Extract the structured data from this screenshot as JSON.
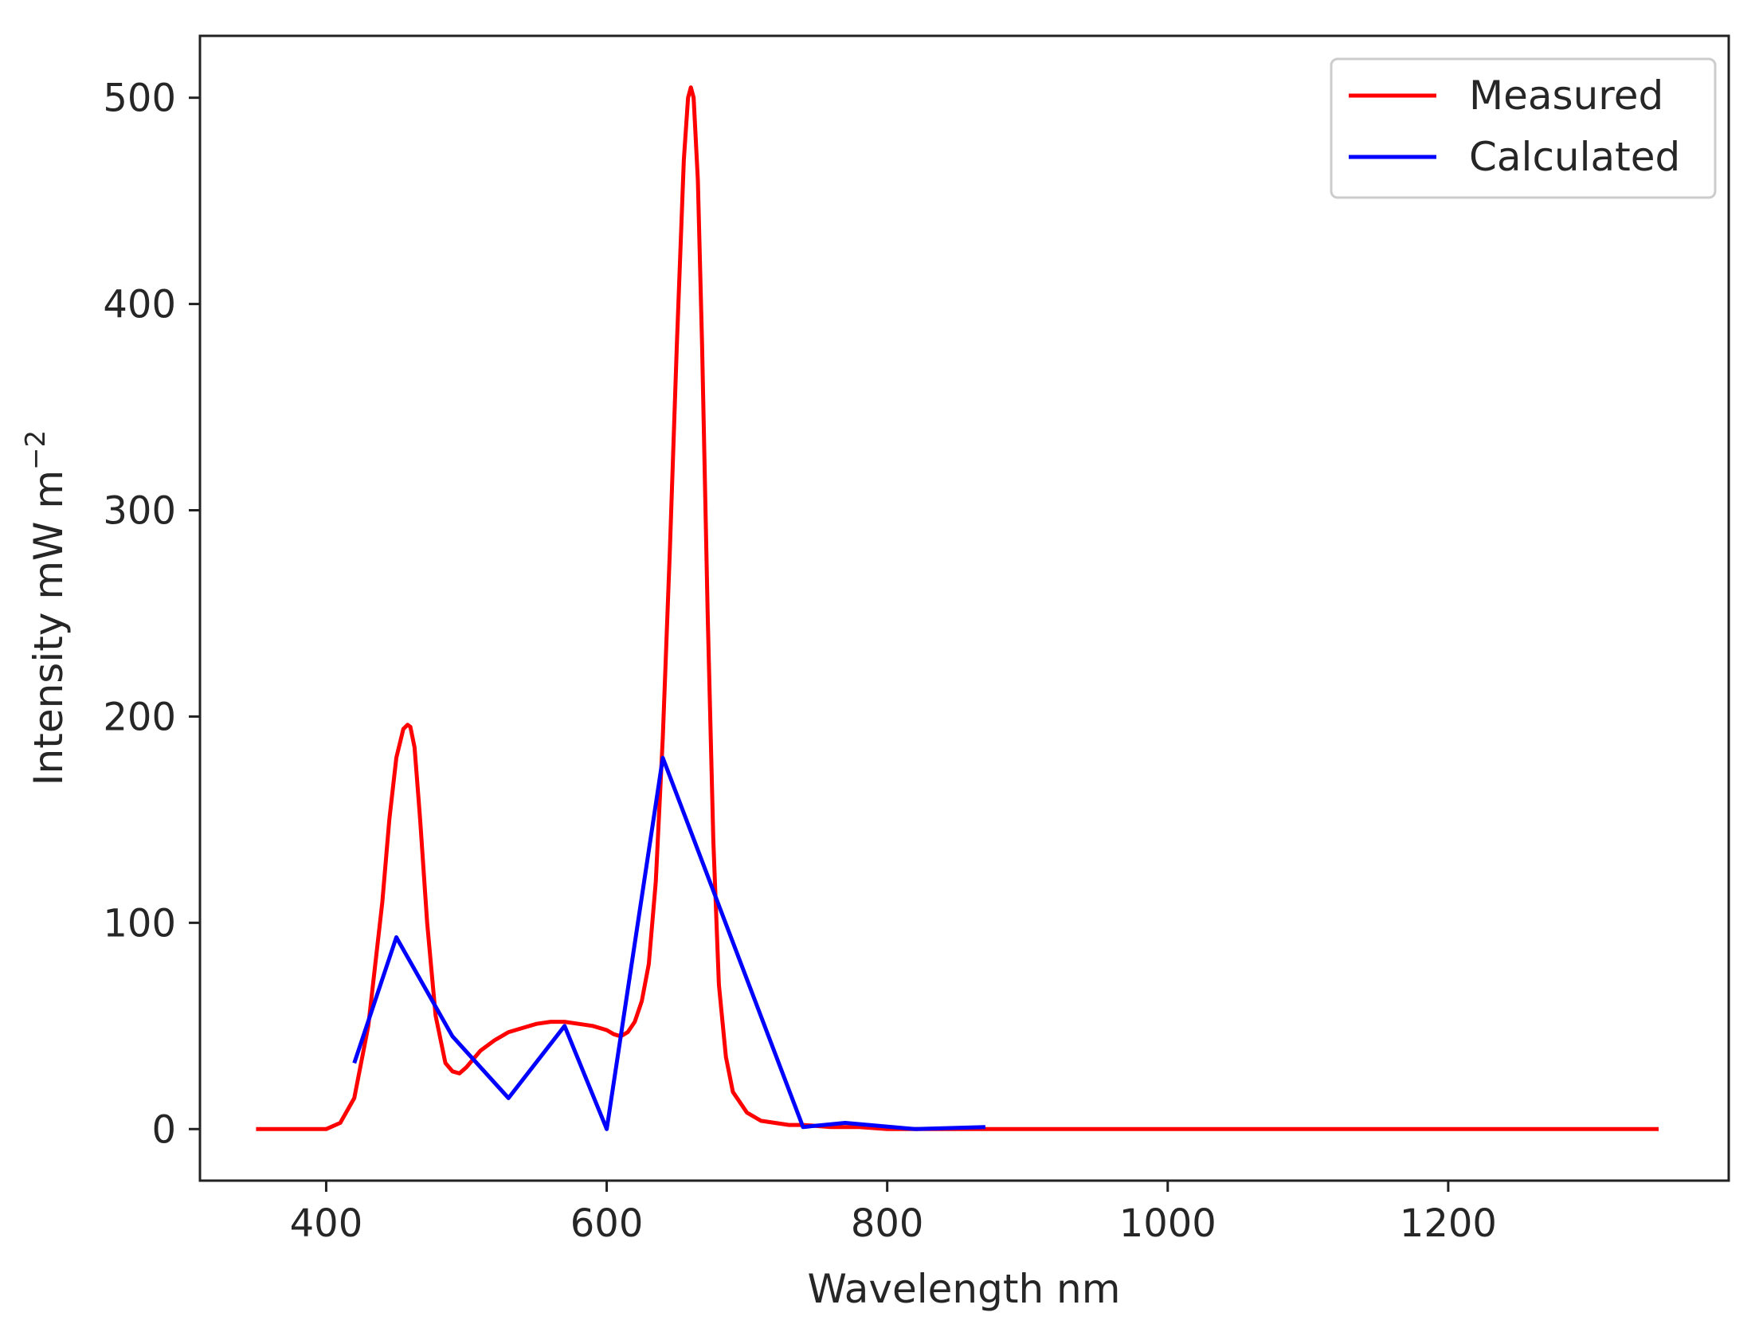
{
  "chart_data": {
    "type": "line",
    "title": "",
    "xlabel": "Wavelength nm",
    "ylabel_main": "Intensity mW m",
    "ylabel_sup": "−2",
    "xlim": [
      310,
      1400
    ],
    "ylim": [
      -25,
      530
    ],
    "xticks": [
      400,
      600,
      800,
      1000,
      1200
    ],
    "yticks": [
      0,
      100,
      200,
      300,
      400,
      500
    ],
    "grid": false,
    "legend_position": "top-right",
    "series": [
      {
        "name": "Measured",
        "color": "#ff0000",
        "x": [
          350,
          370,
          390,
          400,
          410,
          420,
          430,
          440,
          445,
          450,
          455,
          458,
          460,
          463,
          467,
          472,
          478,
          485,
          490,
          495,
          500,
          510,
          520,
          530,
          540,
          550,
          560,
          570,
          580,
          590,
          600,
          605,
          610,
          615,
          620,
          625,
          630,
          635,
          640,
          645,
          650,
          655,
          658,
          660,
          662,
          665,
          668,
          672,
          676,
          680,
          685,
          690,
          700,
          710,
          720,
          730,
          740,
          760,
          780,
          800,
          850,
          900,
          1000,
          1100,
          1200,
          1300,
          1350
        ],
        "y": [
          0,
          0,
          0,
          0,
          3,
          15,
          50,
          110,
          150,
          180,
          194,
          196,
          195,
          185,
          150,
          100,
          55,
          32,
          28,
          27,
          30,
          38,
          43,
          47,
          49,
          51,
          52,
          52,
          51,
          50,
          48,
          46,
          45,
          47,
          52,
          62,
          80,
          120,
          190,
          280,
          380,
          470,
          500,
          505,
          500,
          460,
          380,
          250,
          140,
          70,
          35,
          18,
          8,
          4,
          3,
          2,
          2,
          1,
          1,
          0,
          0,
          0,
          0,
          0,
          0,
          0,
          0
        ]
      },
      {
        "name": "Calculated",
        "color": "#0000ff",
        "x": [
          420,
          450,
          490,
          530,
          570,
          600,
          640,
          740,
          770,
          820,
          870
        ],
        "y": [
          32,
          93,
          45,
          15,
          50,
          0,
          180,
          1,
          3,
          0,
          1
        ]
      }
    ]
  }
}
